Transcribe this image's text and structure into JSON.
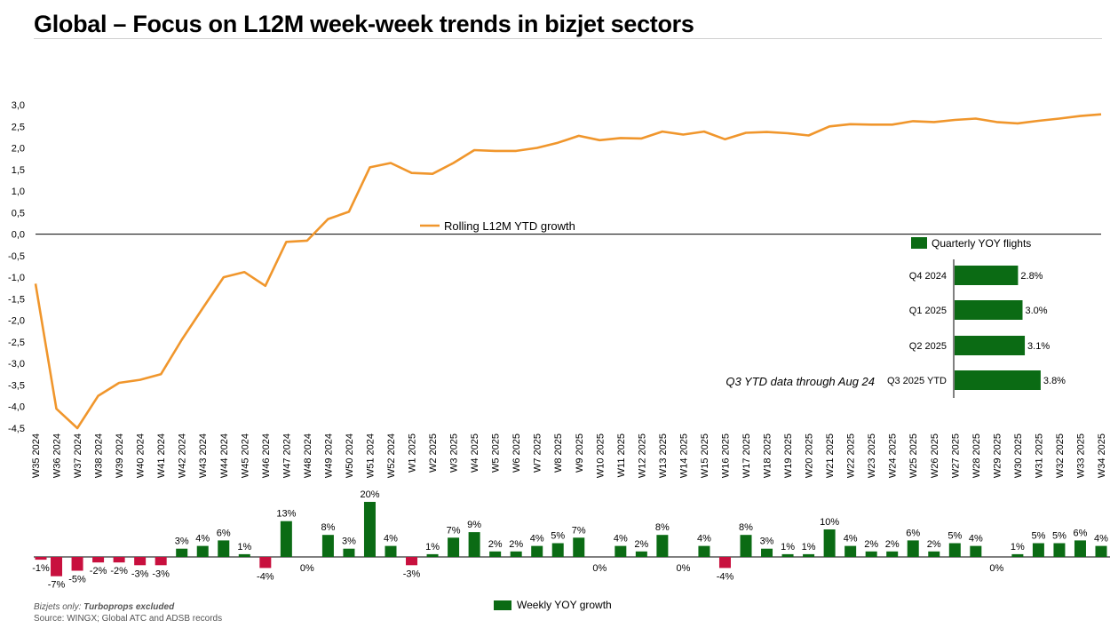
{
  "title": "Global – Focus on L12M week-week trends in bizjet sectors",
  "footnote": {
    "line1_prefix": "Bizjets only: ",
    "line1_emph": "Turboprops excluded",
    "line2": "Source: WINGX; Global ATC and ADSB records"
  },
  "colors": {
    "line": "#F0962C",
    "positive_bar": "#0B6B14",
    "negative_bar": "#C8103E",
    "axis": "#000000",
    "title_rule": "#d0d0d0"
  },
  "chart_data": [
    {
      "type": "line",
      "x": [
        "W35 2024",
        "W36 2024",
        "W37 2024",
        "W38 2024",
        "W39 2024",
        "W40 2024",
        "W41 2024",
        "W42 2024",
        "W43 2024",
        "W44 2024",
        "W45 2024",
        "W46 2024",
        "W47 2024",
        "W48 2024",
        "W49 2024",
        "W50 2024",
        "W51 2024",
        "W52 2024",
        "W1 2025",
        "W2 2025",
        "W3 2025",
        "W4 2025",
        "W5 2025",
        "W6 2025",
        "W7 2025",
        "W8 2025",
        "W9 2025",
        "W10 2025",
        "W11 2025",
        "W12 2025",
        "W13 2025",
        "W14 2025",
        "W15 2025",
        "W16 2025",
        "W17 2025",
        "W18 2025",
        "W19 2025",
        "W20 2025",
        "W21 2025",
        "W22 2025",
        "W23 2025",
        "W24 2025",
        "W25 2025",
        "W26 2025",
        "W27 2025",
        "W28 2025",
        "W29 2025",
        "W30 2025",
        "W31 2025",
        "W32 2025",
        "W33 2025",
        "W34 2025"
      ],
      "series": [
        {
          "name": "Rolling L12M YTD growth",
          "values": [
            -1.15,
            -4.05,
            -4.5,
            -3.75,
            -3.45,
            -3.38,
            -3.25,
            -2.45,
            -1.72,
            -1.0,
            -0.88,
            -1.2,
            -0.18,
            -0.15,
            0.35,
            0.52,
            1.55,
            1.65,
            1.42,
            1.4,
            1.65,
            1.95,
            1.93,
            1.93,
            2.0,
            2.12,
            2.28,
            2.18,
            2.23,
            2.22,
            2.38,
            2.31,
            2.38,
            2.2,
            2.35,
            2.37,
            2.34,
            2.29,
            2.5,
            2.55,
            2.54,
            2.54,
            2.62,
            2.6,
            2.65,
            2.68,
            2.6,
            2.57,
            2.63,
            2.68,
            2.74,
            2.78
          ]
        }
      ],
      "ylim": [
        -4.5,
        3.0
      ],
      "yticks": [
        "3,0",
        "2,5",
        "2,0",
        "1,5",
        "1,0",
        "0,5",
        "0,0",
        "-0,5",
        "-1,0",
        "-1,5",
        "-2,0",
        "-2,5",
        "-3,0",
        "-3,5",
        "-4,0",
        "-4,5"
      ],
      "ytick_values": [
        3.0,
        2.5,
        2.0,
        1.5,
        1.0,
        0.5,
        0.0,
        -0.5,
        -1.0,
        -1.5,
        -2.0,
        -2.5,
        -3.0,
        -3.5,
        -4.0,
        -4.5
      ],
      "legend": {
        "label": "Rolling L12M YTD growth",
        "placement": "center"
      },
      "grid": false
    },
    {
      "type": "bar",
      "orientation": "horizontal",
      "categories": [
        "Q4 2024",
        "Q1 2025",
        "Q2 2025",
        "Q3 2025 YTD"
      ],
      "series": [
        {
          "name": "Quarterly YOY flights",
          "values": [
            2.8,
            3.0,
            3.1,
            3.8
          ]
        }
      ],
      "data_labels": [
        "2.8%",
        "3.0%",
        "3.1%",
        "3.8%"
      ],
      "annotation": "Q3 YTD data through Aug 24",
      "legend": {
        "label": "Quarterly YOY flights",
        "placement": "top"
      }
    },
    {
      "type": "bar",
      "orientation": "vertical",
      "series": [
        {
          "name": "Weekly YOY growth",
          "values": [
            -1,
            -7,
            -5,
            -2,
            -2,
            -3,
            -3,
            3,
            4,
            6,
            1,
            -4,
            13,
            0,
            8,
            3,
            20,
            4,
            -3,
            1,
            7,
            9,
            2,
            2,
            4,
            5,
            7,
            0,
            4,
            2,
            8,
            0,
            4,
            -4,
            8,
            3,
            1,
            1,
            10,
            4,
            2,
            2,
            6,
            2,
            5,
            4,
            0,
            1,
            5,
            5,
            6,
            4
          ]
        }
      ],
      "data_labels": [
        "-1%",
        "-7%",
        "-5%",
        "-2%",
        "-2%",
        "-3%",
        "-3%",
        "3%",
        "4%",
        "6%",
        "1%",
        "-4%",
        "13%",
        "0%",
        "8%",
        "3%",
        "20%",
        "4%",
        "-3%",
        "1%",
        "7%",
        "9%",
        "2%",
        "2%",
        "4%",
        "5%",
        "7%",
        "0%",
        "4%",
        "2%",
        "8%",
        "0%",
        "4%",
        "-4%",
        "8%",
        "3%",
        "1%",
        "1%",
        "10%",
        "4%",
        "2%",
        "2%",
        "6%",
        "2%",
        "5%",
        "4%",
        "0%",
        "1%",
        "5%",
        "5%",
        "6%",
        "4%"
      ],
      "legend": {
        "label": "Weekly YOY growth",
        "placement": "bottom"
      }
    }
  ]
}
